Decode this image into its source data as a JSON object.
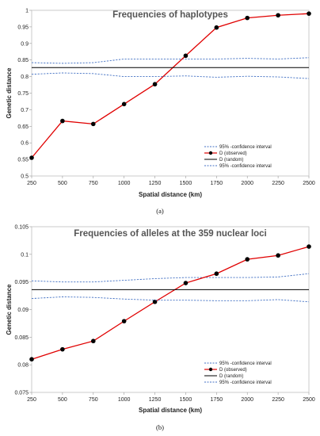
{
  "chart_data": [
    {
      "type": "line",
      "title": "Frequencies of haplotypes",
      "xlabel": "Spatial distance (km)",
      "ylabel": "Genetic distance",
      "caption": "(a)",
      "x": [
        250,
        500,
        750,
        1000,
        1250,
        1500,
        1750,
        2000,
        2250,
        2500
      ],
      "xlim": [
        250,
        2500
      ],
      "ylim": [
        0.5,
        1.0
      ],
      "yticks": [
        0.5,
        0.55,
        0.6,
        0.65,
        0.7,
        0.75,
        0.8,
        0.85,
        0.9,
        0.95,
        1
      ],
      "ytick_labels": [
        "0.5",
        "0.55",
        "0.6",
        "0.65",
        "0.7",
        "0.75",
        "0.8",
        "0.85",
        "0.9",
        "0.95",
        "1"
      ],
      "xtick_labels": [
        "250",
        "500",
        "750",
        "1000",
        "1250",
        "1500",
        "1750",
        "2000",
        "2250",
        "2500"
      ],
      "grid": false,
      "legend_position": "bottom-right",
      "series": [
        {
          "name": "95% -confidence interval",
          "style": "dashed",
          "color": "#4472C4",
          "values": [
            0.842,
            0.84,
            0.842,
            0.853,
            0.853,
            0.853,
            0.853,
            0.855,
            0.853,
            0.857
          ]
        },
        {
          "name": "D (observed)",
          "style": "line-marker",
          "color": "#E00000",
          "values": [
            0.555,
            0.666,
            0.657,
            0.717,
            0.777,
            0.863,
            0.948,
            0.977,
            0.985,
            0.99
          ]
        },
        {
          "name": "D (random)",
          "style": "solid",
          "color": "#000000",
          "values": [
            0.827,
            0.827,
            0.827,
            0.827,
            0.827,
            0.827,
            0.827,
            0.827,
            0.827,
            0.827
          ]
        },
        {
          "name": "95% -confidence interval",
          "style": "dashed",
          "color": "#4472C4",
          "values": [
            0.807,
            0.811,
            0.809,
            0.8,
            0.8,
            0.802,
            0.798,
            0.801,
            0.799,
            0.794
          ]
        }
      ]
    },
    {
      "type": "line",
      "title": "Frequencies of alleles at the 359 nuclear loci",
      "xlabel": "Spatial distance (km)",
      "ylabel": "Genetic distance",
      "caption": "(b)",
      "x": [
        250,
        500,
        750,
        1000,
        1250,
        1500,
        1750,
        2000,
        2250,
        2500
      ],
      "xlim": [
        250,
        2500
      ],
      "ylim": [
        0.075,
        0.105
      ],
      "yticks": [
        0.075,
        0.08,
        0.085,
        0.09,
        0.095,
        0.1,
        0.105
      ],
      "ytick_labels": [
        "0.075",
        "0.08",
        "0.085",
        "0.09",
        "0.095",
        "0.1",
        "0.105"
      ],
      "xtick_labels": [
        "250",
        "500",
        "750",
        "1000",
        "1250",
        "1500",
        "1750",
        "2000",
        "2250",
        "2500"
      ],
      "grid": false,
      "legend_position": "bottom-right",
      "series": [
        {
          "name": "95% -confidence interval",
          "style": "dashed",
          "color": "#4472C4",
          "values": [
            0.0952,
            0.095,
            0.095,
            0.0953,
            0.0956,
            0.0958,
            0.0958,
            0.0958,
            0.0959,
            0.0965
          ]
        },
        {
          "name": "D (observed)",
          "style": "line-marker",
          "color": "#E00000",
          "values": [
            0.081,
            0.0828,
            0.0843,
            0.0879,
            0.0914,
            0.0948,
            0.0965,
            0.0991,
            0.0998,
            0.1014
          ]
        },
        {
          "name": "D (random)",
          "style": "solid",
          "color": "#000000",
          "values": [
            0.0936,
            0.0936,
            0.0936,
            0.0936,
            0.0936,
            0.0936,
            0.0936,
            0.0936,
            0.0936,
            0.0936
          ]
        },
        {
          "name": "95% -confidence interval",
          "style": "dashed",
          "color": "#4472C4",
          "values": [
            0.092,
            0.0923,
            0.0922,
            0.0919,
            0.0917,
            0.0917,
            0.0916,
            0.0916,
            0.0918,
            0.0914
          ]
        }
      ]
    }
  ]
}
